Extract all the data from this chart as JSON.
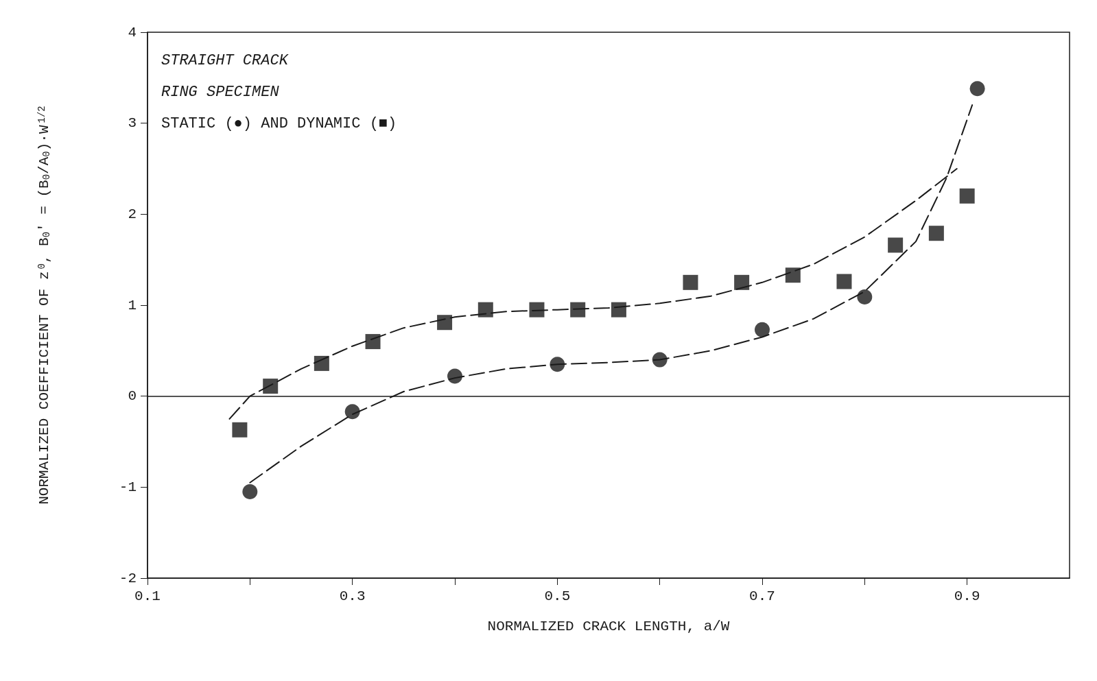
{
  "chart_data": {
    "type": "scatter",
    "xlabel": "NORMALIZED CRACK LENGTH, a/W",
    "ylabel": "NORMALIZED COEFFICIENT OF z$^{0}$, B$_{0}$' = (B$_{0}$/A$_{0}$)·W$^{1/2}$",
    "annotations": [
      "STRAIGHT CRACK",
      "RING SPECIMEN",
      "STATIC (●) AND DYNAMIC (■)"
    ],
    "xlim": [
      0.1,
      1.0
    ],
    "xticks": [
      0.1,
      {
        "value": 0.2,
        "label": null
      },
      0.3,
      {
        "value": 0.4,
        "label": null
      },
      0.5,
      {
        "value": 0.6,
        "label": null
      },
      0.7,
      {
        "value": 0.8,
        "label": null
      },
      0.9
    ],
    "ylim": [
      -2,
      4
    ],
    "yticks": [
      -2,
      -1,
      0,
      1,
      2,
      3,
      4
    ],
    "ref_lines": [
      {
        "axis": "y",
        "value": 0,
        "color": "#1a1a1a",
        "line_style": "solid"
      }
    ],
    "series": [
      {
        "marker": "circle",
        "color": "#1a1a1a",
        "x": [
          0.2,
          0.3,
          0.4,
          0.5,
          0.6,
          0.7,
          0.8,
          0.91
        ],
        "values": [
          -1.05,
          -0.17,
          0.22,
          0.35,
          0.4,
          0.73,
          1.09,
          3.38
        ]
      },
      {
        "marker": "square",
        "color": "#1a1a1a",
        "x": [
          0.19,
          0.22,
          0.27,
          0.32,
          0.39,
          0.43,
          0.48,
          0.52,
          0.56,
          0.63,
          0.68,
          0.73,
          0.78,
          0.83,
          0.87,
          0.9
        ],
        "values": [
          -0.37,
          0.11,
          0.36,
          0.6,
          0.81,
          0.95,
          0.95,
          0.95,
          0.95,
          1.25,
          1.25,
          1.33,
          1.26,
          1.66,
          1.79,
          2.2
        ]
      },
      {
        "type": "line",
        "marker": "none",
        "line_style": "dashed",
        "color": "#1a1a1a",
        "x": [
          0.2,
          0.25,
          0.3,
          0.35,
          0.4,
          0.45,
          0.5,
          0.55,
          0.6,
          0.65,
          0.7,
          0.75,
          0.8,
          0.85,
          0.88,
          0.905
        ],
        "values": [
          -0.95,
          -0.55,
          -0.2,
          0.05,
          0.2,
          0.3,
          0.35,
          0.37,
          0.4,
          0.5,
          0.65,
          0.85,
          1.15,
          1.7,
          2.4,
          3.2
        ]
      },
      {
        "type": "line",
        "marker": "none",
        "line_style": "dashed",
        "color": "#1a1a1a",
        "x": [
          0.18,
          0.2,
          0.25,
          0.3,
          0.35,
          0.4,
          0.45,
          0.5,
          0.55,
          0.6,
          0.65,
          0.7,
          0.75,
          0.8,
          0.85,
          0.89
        ],
        "values": [
          -0.25,
          0.0,
          0.3,
          0.55,
          0.75,
          0.87,
          0.93,
          0.95,
          0.97,
          1.02,
          1.1,
          1.25,
          1.45,
          1.75,
          2.15,
          2.5
        ]
      }
    ]
  }
}
